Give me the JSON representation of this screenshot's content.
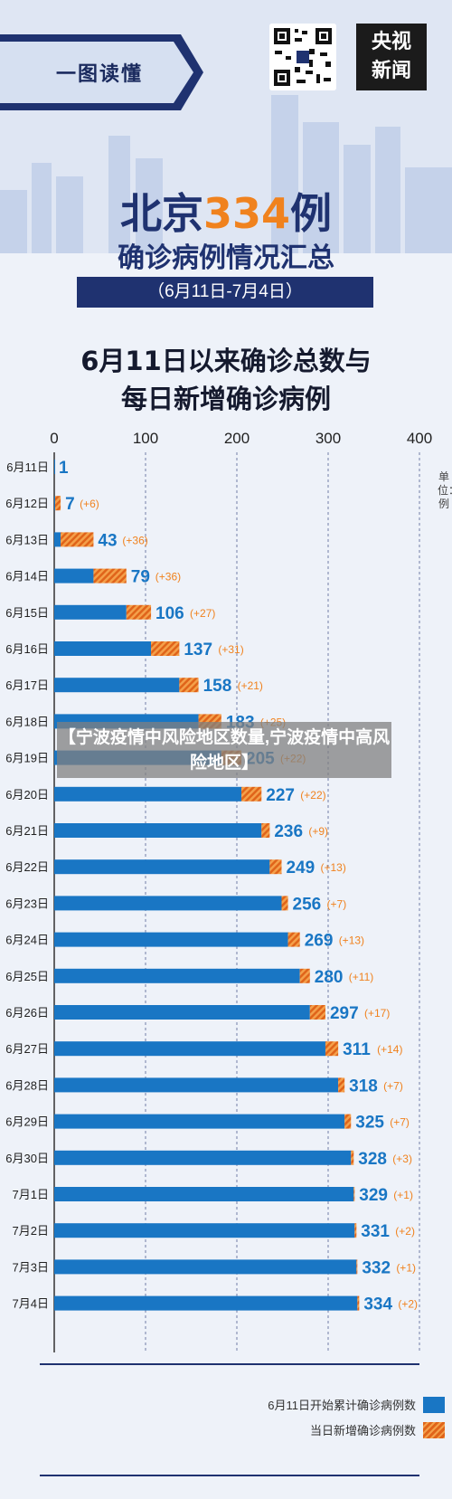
{
  "header": {
    "banner_label": "一图读懂",
    "logo_line1": "央视",
    "logo_line2": "新闻"
  },
  "title": {
    "prefix": "北京",
    "number": "334",
    "suffix": "例",
    "subtitle": "确诊病例情况汇总",
    "date_range": "（6月11日-7月4日）"
  },
  "chart_title_line1": "6月11日以来确诊总数与",
  "chart_title_line2": "每日新增确诊病例",
  "unit_label": "单位：例",
  "overlay_text": "【宁波疫情中风险地区数量,宁波疫情中高风险地区】",
  "colors": {
    "total": "#1976c4",
    "new_dark": "#e0641a",
    "new_light": "#f4a04a",
    "title_blue": "#1f3270",
    "accent_orange": "#f0821e"
  },
  "chart_data": {
    "type": "bar",
    "orientation": "horizontal",
    "stacked": true,
    "categories": [
      "6月11日",
      "6月12日",
      "6月13日",
      "6月14日",
      "6月15日",
      "6月16日",
      "6月17日",
      "6月18日",
      "6月19日",
      "6月20日",
      "6月21日",
      "6月22日",
      "6月23日",
      "6月24日",
      "6月25日",
      "6月26日",
      "6月27日",
      "6月28日",
      "6月29日",
      "6月30日",
      "7月1日",
      "7月2日",
      "7月3日",
      "7月4日"
    ],
    "totals": [
      1,
      7,
      43,
      79,
      106,
      137,
      158,
      183,
      205,
      227,
      236,
      249,
      256,
      269,
      280,
      297,
      311,
      318,
      325,
      328,
      329,
      331,
      332,
      334
    ],
    "new_labels": [
      "",
      "(+6)",
      "(+36)",
      "(+36)",
      "(+27)",
      "(+31)",
      "(+21)",
      "(+25)",
      "(+22)",
      "(+22)",
      "(+9)",
      "(+13)",
      "(+7)",
      "(+13)",
      "(+11)",
      "(+17)",
      "(+14)",
      "(+7)",
      "(+7)",
      "(+3)",
      "(+1)",
      "(+2)",
      "(+1)",
      "(+2)"
    ],
    "series": [
      {
        "name": "6月11日开始累计确诊病例数",
        "values": [
          1,
          1,
          7,
          43,
          79,
          106,
          137,
          158,
          183,
          205,
          227,
          236,
          249,
          256,
          269,
          280,
          297,
          311,
          318,
          325,
          328,
          329,
          331,
          332
        ]
      },
      {
        "name": "当日新增确诊病例数",
        "values": [
          0,
          6,
          36,
          36,
          27,
          31,
          21,
          25,
          22,
          22,
          9,
          13,
          7,
          13,
          11,
          17,
          14,
          7,
          7,
          3,
          1,
          2,
          1,
          2
        ]
      }
    ],
    "x_ticks": [
      "0",
      "100",
      "200",
      "300",
      "400"
    ],
    "xlim": [
      0,
      400
    ],
    "grid": true,
    "legend": "bottom-right"
  }
}
